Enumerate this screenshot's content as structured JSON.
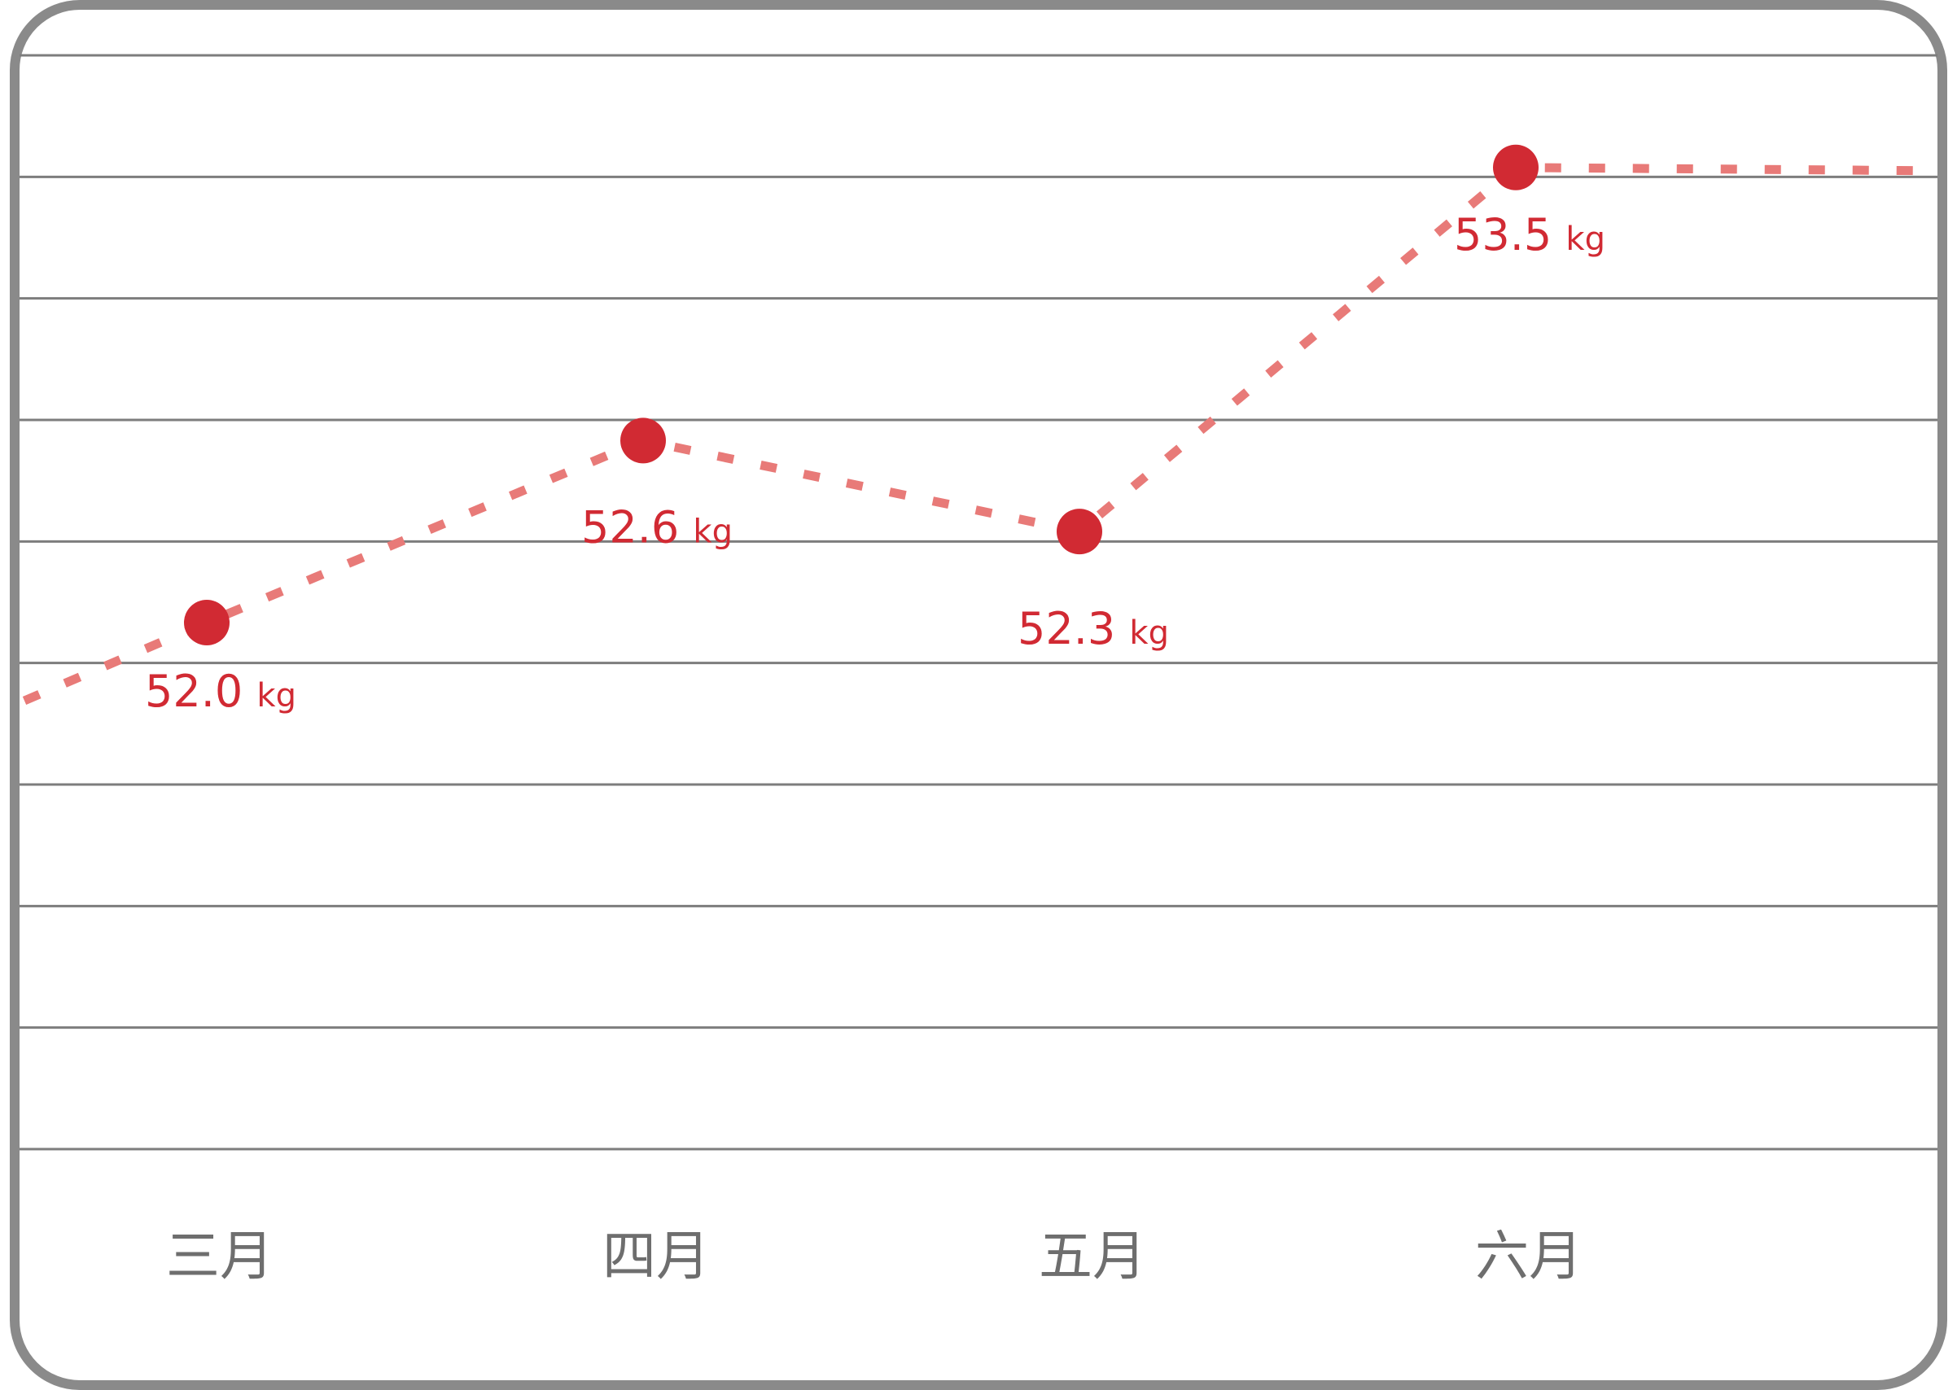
{
  "chart_data": {
    "type": "line",
    "categories": [
      "三月",
      "四月",
      "五月",
      "六月"
    ],
    "values": [
      52.0,
      52.6,
      52.3,
      53.5
    ],
    "unit": "kg",
    "title": "",
    "xlabel": "",
    "ylabel": "",
    "ylim": [
      50.0,
      54.4
    ],
    "grid": true,
    "legend": "none",
    "colors": {
      "line": "#e87a78",
      "point": "#d12a33",
      "label": "#d12a33",
      "axis_text": "#6e6e6e",
      "grid": "#7d7d7d",
      "frame": "#8a8a8a"
    }
  }
}
